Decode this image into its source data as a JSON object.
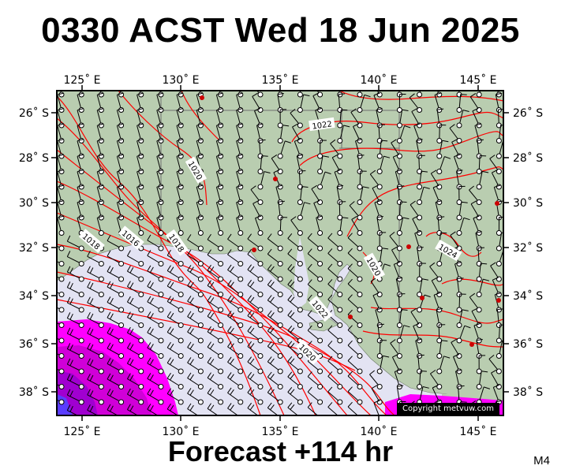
{
  "header": {
    "title": "0330 ACST Wed 18 Jun 2025"
  },
  "footer": {
    "forecast": "Forecast +114 hr",
    "model": "M4"
  },
  "map": {
    "lon_labels": [
      "125˚ E",
      "130˚ E",
      "135˚ E",
      "140˚ E",
      "145˚ E"
    ],
    "lat_labels": [
      "26˚ S",
      "28˚ S",
      "30˚ S",
      "32˚ S",
      "34˚ S",
      "36˚ S",
      "38˚ S"
    ],
    "isobar_labels": [
      "1022",
      "1020",
      "1018",
      "1016",
      "1018",
      "1020",
      "1022",
      "1020",
      "1022",
      "1024"
    ],
    "copyright": "Copyright metvuw.com",
    "colors": {
      "land": "#b9cdb0",
      "sea": "#e3e3f3",
      "isobar": "#ff0000",
      "rain": "#ff00ff",
      "frame": "#000000"
    }
  }
}
